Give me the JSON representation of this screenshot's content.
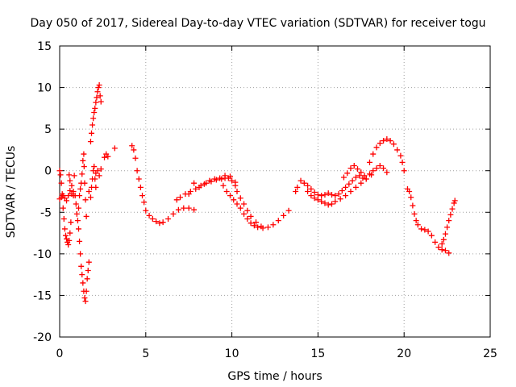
{
  "chart_data": {
    "type": "scatter",
    "title": "Day 050 of 2017, Sidereal Day-to-day VTEC variation (SDTVAR) for receiver togu",
    "xlabel": "GPS time / hours",
    "ylabel": "SDTVAR / TECUs",
    "xlim": [
      0,
      25
    ],
    "ylim": [
      -20,
      15
    ],
    "xticks": [
      0,
      5,
      10,
      15,
      20,
      25
    ],
    "yticks": [
      -20,
      -15,
      -10,
      -5,
      0,
      5,
      10,
      15
    ],
    "xtick_labels": [
      "0",
      "5",
      "10",
      "15",
      "20",
      "25"
    ],
    "ytick_labels": [
      "-20",
      "-15",
      "-10",
      "-5",
      "0",
      "5",
      "10",
      "15"
    ],
    "grid": true,
    "marker": "plus",
    "color": "#ff0000",
    "series": [
      {
        "name": "SDTVAR",
        "points": [
          [
            0.0,
            0.0
          ],
          [
            0.05,
            -0.5
          ],
          [
            0.1,
            -1.5
          ],
          [
            0.15,
            -2.8
          ],
          [
            0.2,
            -4.5
          ],
          [
            0.25,
            -5.8
          ],
          [
            0.3,
            -7.0
          ],
          [
            0.35,
            -7.8
          ],
          [
            0.4,
            -8.2
          ],
          [
            0.45,
            -8.6
          ],
          [
            0.5,
            -8.9
          ],
          [
            0.55,
            -8.4
          ],
          [
            0.6,
            -7.5
          ],
          [
            0.65,
            -6.2
          ],
          [
            0.0,
            -3.4
          ],
          [
            0.1,
            -3.2
          ],
          [
            0.2,
            -3.0
          ],
          [
            0.3,
            -3.3
          ],
          [
            0.4,
            -3.6
          ],
          [
            0.5,
            -3.0
          ],
          [
            0.6,
            -2.4
          ],
          [
            0.7,
            -2.8
          ],
          [
            0.8,
            -3.0
          ],
          [
            0.55,
            -0.5
          ],
          [
            0.6,
            -1.2
          ],
          [
            0.7,
            -1.8
          ],
          [
            0.8,
            -2.5
          ],
          [
            0.9,
            -3.0
          ],
          [
            0.95,
            -4.0
          ],
          [
            1.0,
            -5.2
          ],
          [
            1.05,
            -6.0
          ],
          [
            0.85,
            -0.6
          ],
          [
            1.1,
            -4.5
          ],
          [
            1.15,
            -3.0
          ],
          [
            1.2,
            -2.2
          ],
          [
            1.25,
            -1.5
          ],
          [
            1.3,
            -0.4
          ],
          [
            1.35,
            1.2
          ],
          [
            1.4,
            2.0
          ],
          [
            1.42,
            0.5
          ],
          [
            1.45,
            -1.5
          ],
          [
            1.5,
            -3.5
          ],
          [
            1.55,
            -5.5
          ],
          [
            1.1,
            -7.0
          ],
          [
            1.15,
            -8.5
          ],
          [
            1.2,
            -10.0
          ],
          [
            1.25,
            -11.5
          ],
          [
            1.3,
            -12.5
          ],
          [
            1.35,
            -13.5
          ],
          [
            1.4,
            -14.5
          ],
          [
            1.45,
            -15.3
          ],
          [
            1.5,
            -15.7
          ],
          [
            1.55,
            -14.5
          ],
          [
            1.6,
            -13.0
          ],
          [
            1.65,
            -12.0
          ],
          [
            1.7,
            -11.0
          ],
          [
            1.7,
            -2.5
          ],
          [
            1.8,
            -3.2
          ],
          [
            1.85,
            -2.0
          ],
          [
            1.9,
            -1.0
          ],
          [
            1.95,
            0.0
          ],
          [
            2.0,
            0.5
          ],
          [
            2.05,
            -1.0
          ],
          [
            2.1,
            -2.0
          ],
          [
            1.8,
            3.5
          ],
          [
            1.85,
            4.5
          ],
          [
            1.9,
            5.5
          ],
          [
            1.95,
            6.3
          ],
          [
            2.0,
            7.0
          ],
          [
            2.05,
            7.5
          ],
          [
            2.1,
            8.2
          ],
          [
            2.15,
            8.8
          ],
          [
            2.2,
            9.5
          ],
          [
            2.25,
            10.0
          ],
          [
            2.3,
            10.3
          ],
          [
            2.35,
            9.0
          ],
          [
            2.4,
            8.3
          ],
          [
            2.1,
            -0.3
          ],
          [
            2.2,
            0.0
          ],
          [
            2.3,
            -0.6
          ],
          [
            2.4,
            0.2
          ],
          [
            2.6,
            1.6
          ],
          [
            2.7,
            2.0
          ],
          [
            2.8,
            1.7
          ],
          [
            3.2,
            2.7
          ],
          [
            4.2,
            3.0
          ],
          [
            4.3,
            2.5
          ],
          [
            4.4,
            1.5
          ],
          [
            4.5,
            0.0
          ],
          [
            4.6,
            -1.0
          ],
          [
            4.7,
            -2.0
          ],
          [
            4.8,
            -3.0
          ],
          [
            4.9,
            -3.8
          ],
          [
            5.0,
            -4.8
          ],
          [
            5.2,
            -5.4
          ],
          [
            5.4,
            -5.8
          ],
          [
            5.6,
            -6.1
          ],
          [
            5.8,
            -6.3
          ],
          [
            6.0,
            -6.2
          ],
          [
            6.3,
            -5.8
          ],
          [
            6.6,
            -5.2
          ],
          [
            6.9,
            -4.7
          ],
          [
            7.2,
            -4.5
          ],
          [
            7.5,
            -4.5
          ],
          [
            7.8,
            -4.7
          ],
          [
            6.8,
            -3.5
          ],
          [
            7.0,
            -3.2
          ],
          [
            7.3,
            -2.8
          ],
          [
            7.6,
            -2.5
          ],
          [
            7.9,
            -2.2
          ],
          [
            8.2,
            -1.8
          ],
          [
            8.5,
            -1.5
          ],
          [
            8.8,
            -1.3
          ],
          [
            9.1,
            -1.1
          ],
          [
            9.4,
            -1.0
          ],
          [
            9.6,
            -0.9
          ],
          [
            9.8,
            -0.9
          ],
          [
            10.0,
            -1.2
          ],
          [
            10.2,
            -1.8
          ],
          [
            7.5,
            -2.8
          ],
          [
            7.8,
            -1.5
          ],
          [
            8.1,
            -2.0
          ],
          [
            8.4,
            -1.6
          ],
          [
            8.7,
            -1.2
          ],
          [
            9.0,
            -1.0
          ],
          [
            9.3,
            -0.9
          ],
          [
            9.6,
            -0.6
          ],
          [
            9.9,
            -0.7
          ],
          [
            10.2,
            -1.4
          ],
          [
            9.5,
            -1.8
          ],
          [
            9.7,
            -2.5
          ],
          [
            9.9,
            -3.0
          ],
          [
            10.1,
            -3.5
          ],
          [
            10.3,
            -4.0
          ],
          [
            10.5,
            -4.5
          ],
          [
            10.7,
            -5.2
          ],
          [
            10.9,
            -5.8
          ],
          [
            11.1,
            -6.3
          ],
          [
            11.3,
            -6.6
          ],
          [
            11.5,
            -6.8
          ],
          [
            11.8,
            -6.9
          ],
          [
            12.1,
            -6.8
          ],
          [
            12.4,
            -6.5
          ],
          [
            12.7,
            -6.0
          ],
          [
            13.0,
            -5.4
          ],
          [
            13.3,
            -4.8
          ],
          [
            10.3,
            -2.5
          ],
          [
            10.5,
            -3.3
          ],
          [
            10.7,
            -4.0
          ],
          [
            10.9,
            -4.8
          ],
          [
            11.1,
            -5.5
          ],
          [
            11.4,
            -6.2
          ],
          [
            11.7,
            -6.7
          ],
          [
            13.7,
            -2.5
          ],
          [
            13.8,
            -2.0
          ],
          [
            14.0,
            -1.2
          ],
          [
            14.2,
            -1.5
          ],
          [
            14.4,
            -1.8
          ],
          [
            14.6,
            -2.2
          ],
          [
            14.8,
            -2.6
          ],
          [
            15.0,
            -2.9
          ],
          [
            15.2,
            -3.0
          ],
          [
            15.4,
            -2.9
          ],
          [
            15.6,
            -2.7
          ],
          [
            15.8,
            -2.9
          ],
          [
            16.0,
            -3.0
          ],
          [
            16.2,
            -2.8
          ],
          [
            16.4,
            -2.4
          ],
          [
            16.6,
            -2.0
          ],
          [
            16.8,
            -1.6
          ],
          [
            17.0,
            -1.2
          ],
          [
            17.2,
            -0.8
          ],
          [
            17.4,
            -0.6
          ],
          [
            17.6,
            -0.9
          ],
          [
            17.8,
            -1.0
          ],
          [
            14.4,
            -2.5
          ],
          [
            14.6,
            -3.0
          ],
          [
            14.8,
            -3.3
          ],
          [
            15.0,
            -3.5
          ],
          [
            15.2,
            -3.7
          ],
          [
            15.4,
            -3.9
          ],
          [
            15.6,
            -4.1
          ],
          [
            15.8,
            -4.0
          ],
          [
            16.0,
            -3.7
          ],
          [
            16.3,
            -3.4
          ],
          [
            16.6,
            -3.0
          ],
          [
            16.9,
            -2.5
          ],
          [
            17.2,
            -2.0
          ],
          [
            17.5,
            -1.5
          ],
          [
            17.8,
            -1.0
          ],
          [
            18.1,
            -0.5
          ],
          [
            16.5,
            -0.8
          ],
          [
            16.7,
            -0.3
          ],
          [
            16.9,
            0.3
          ],
          [
            17.1,
            0.6
          ],
          [
            17.3,
            0.2
          ],
          [
            17.5,
            -0.2
          ],
          [
            17.7,
            -0.6
          ],
          [
            18.0,
            -0.4
          ],
          [
            18.2,
            0.0
          ],
          [
            18.4,
            0.3
          ],
          [
            18.6,
            0.6
          ],
          [
            18.8,
            0.3
          ],
          [
            19.0,
            -0.2
          ],
          [
            18.0,
            1.0
          ],
          [
            18.2,
            2.0
          ],
          [
            18.4,
            2.8
          ],
          [
            18.6,
            3.3
          ],
          [
            18.8,
            3.6
          ],
          [
            19.0,
            3.8
          ],
          [
            19.2,
            3.6
          ],
          [
            19.4,
            3.2
          ],
          [
            19.6,
            2.5
          ],
          [
            19.8,
            1.8
          ],
          [
            19.9,
            1.0
          ],
          [
            20.0,
            0.0
          ],
          [
            20.2,
            -2.2
          ],
          [
            20.3,
            -2.5
          ],
          [
            20.4,
            -3.2
          ],
          [
            20.5,
            -4.2
          ],
          [
            20.6,
            -5.2
          ],
          [
            20.7,
            -6.0
          ],
          [
            20.8,
            -6.5
          ],
          [
            21.0,
            -7.0
          ],
          [
            21.2,
            -7.1
          ],
          [
            21.4,
            -7.3
          ],
          [
            21.6,
            -7.8
          ],
          [
            21.8,
            -8.6
          ],
          [
            22.0,
            -9.2
          ],
          [
            22.2,
            -9.5
          ],
          [
            22.4,
            -9.6
          ],
          [
            22.6,
            -9.9
          ],
          [
            22.2,
            -8.8
          ],
          [
            22.3,
            -8.3
          ],
          [
            22.4,
            -7.6
          ],
          [
            22.5,
            -6.8
          ],
          [
            22.6,
            -6.0
          ],
          [
            22.7,
            -5.3
          ],
          [
            22.8,
            -4.6
          ],
          [
            22.9,
            -3.9
          ],
          [
            22.95,
            -3.6
          ]
        ]
      }
    ]
  }
}
